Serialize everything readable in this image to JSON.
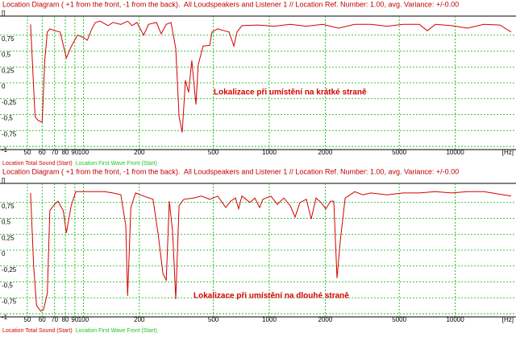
{
  "chart_data": [
    {
      "type": "line",
      "title": "Location Diagram ( +1 from the front, -1 from the back).  All Loudspeakers and Listener 1 // Location Ref. Number: 1.00, avg. Variance: +/-0.00",
      "y_label": "[]",
      "x_label": "[Hz]",
      "annotation": "Lokalizace při umístění na krátké straně",
      "xscale": "log",
      "grid": true,
      "grid_color": "#00b400",
      "xlim": [
        50,
        20000
      ],
      "ylim": [
        -1.05,
        1.05
      ],
      "xticks": [
        50,
        60,
        70,
        80,
        90,
        100,
        200,
        500,
        1000,
        2000,
        5000,
        10000
      ],
      "yticks": [
        {
          "value": 0.75,
          "label": "0,75"
        },
        {
          "value": 0.5,
          "label": "0,5"
        },
        {
          "value": 0.25,
          "label": "0,25"
        },
        0,
        {
          "value": -0.25,
          "label": "-0,25"
        },
        {
          "value": -0.5,
          "label": "-0,5"
        },
        {
          "value": -0.75,
          "label": "-0,75"
        },
        -1
      ],
      "x": [
        52,
        55,
        57,
        60,
        62,
        64,
        66,
        70,
        75,
        81,
        86,
        93,
        99,
        105,
        111,
        116,
        123,
        136,
        144,
        159,
        173,
        183,
        194,
        211,
        224,
        247,
        262,
        279,
        296,
        314,
        327,
        340,
        354,
        368,
        383,
        403,
        415,
        441,
        478,
        492,
        528,
        572,
        607,
        645,
        671,
        712,
        870,
        1062,
        1297,
        1583,
        1933,
        2360,
        2883,
        3520,
        4298,
        5248,
        6410,
        7080,
        7825,
        9555,
        11665,
        14245,
        17390,
        20000
      ],
      "series": [
        {
          "name": "Location Total Sound (Start)",
          "color": "#d40000",
          "values": [
            0.92,
            -0.53,
            -0.59,
            -0.62,
            0.35,
            0.8,
            0.85,
            0.82,
            0.8,
            0.39,
            0.57,
            0.75,
            0.72,
            0.67,
            0.85,
            0.95,
            0.97,
            0.9,
            0.95,
            0.92,
            0.97,
            0.9,
            0.95,
            0.75,
            0.92,
            0.95,
            0.77,
            0.92,
            0.95,
            0.54,
            -0.53,
            -0.78,
            0.04,
            -0.15,
            0.35,
            -0.34,
            0.29,
            0.58,
            0.59,
            0.8,
            0.85,
            0.82,
            0.8,
            0.58,
            0.8,
            0.9,
            0.91,
            0.89,
            0.92,
            0.89,
            0.92,
            0.86,
            0.92,
            0.92,
            0.89,
            0.92,
            0.92,
            0.82,
            0.92,
            0.9,
            0.86,
            0.92,
            0.91,
            0.8
          ]
        },
        {
          "name": "Location First Wave Front (Start)",
          "color": "#22c422"
        }
      ]
    },
    {
      "type": "line",
      "title": "Location Diagram ( +1 from the front, -1 from the back).  All Loudspeakers and Listener 1 // Location Ref. Number: 1.00, avg. Variance: +/-0.00",
      "y_label": "[]",
      "x_label": "[Hz]",
      "annotation": "Lokalizace při umístění na dlouhé straně",
      "xscale": "log",
      "grid": true,
      "grid_color": "#00b400",
      "xlim": [
        50,
        20000
      ],
      "ylim": [
        -1.05,
        1.05
      ],
      "xticks": [
        50,
        60,
        70,
        80,
        90,
        100,
        200,
        500,
        1000,
        2000,
        5000,
        10000
      ],
      "yticks": [
        {
          "value": 0.75,
          "label": "0,75"
        },
        {
          "value": 0.5,
          "label": "0,5"
        },
        {
          "value": 0.25,
          "label": "0,25"
        },
        0,
        {
          "value": -0.25,
          "label": "-0,25"
        },
        {
          "value": -0.5,
          "label": "-0,5"
        },
        {
          "value": -0.75,
          "label": "-0,75"
        },
        -1
      ],
      "x": [
        52,
        54,
        56,
        59,
        61,
        64,
        66,
        69,
        73,
        78,
        81,
        86,
        91,
        97,
        107,
        118,
        130,
        144,
        159,
        169,
        173,
        180,
        191,
        211,
        237,
        252,
        268,
        279,
        290,
        302,
        314,
        327,
        347,
        391,
        432,
        478,
        528,
        583,
        620,
        658,
        684,
        712,
        787,
        836,
        887,
        923,
        1020,
        1105,
        1197,
        1297,
        1377,
        1462,
        1583,
        1681,
        1785,
        1896,
        2013,
        2137,
        2224,
        2314,
        2409,
        2558,
        2662,
        2883,
        3186,
        3520,
        4298,
        5248,
        6410,
        7825,
        9555,
        11665,
        14245,
        20000
      ],
      "series": [
        {
          "name": "Location Total Sound (Start)",
          "color": "#d40000",
          "values": [
            0.9,
            -0.24,
            -0.87,
            -0.96,
            -0.94,
            -0.68,
            0.62,
            0.7,
            0.77,
            0.62,
            0.27,
            0.7,
            0.92,
            0.92,
            0.92,
            0.92,
            0.92,
            0.9,
            0.87,
            0.39,
            -0.72,
            0.67,
            0.9,
            0.85,
            0.8,
            0.27,
            -0.37,
            -0.47,
            0.77,
            0.29,
            -0.77,
            0.7,
            0.8,
            0.82,
            0.85,
            0.8,
            0.85,
            0.67,
            0.77,
            0.82,
            0.65,
            0.85,
            0.75,
            0.82,
            0.67,
            0.8,
            0.85,
            0.72,
            0.82,
            0.7,
            0.52,
            0.75,
            0.8,
            0.49,
            0.82,
            0.75,
            0.65,
            0.77,
            0.77,
            -0.44,
            0.14,
            0.82,
            0.85,
            0.92,
            0.87,
            0.9,
            0.87,
            0.9,
            0.9,
            0.92,
            0.9,
            0.92,
            0.92,
            0.85
          ]
        },
        {
          "name": "Location First Wave Front (Start)",
          "color": "#22c422"
        }
      ]
    }
  ]
}
